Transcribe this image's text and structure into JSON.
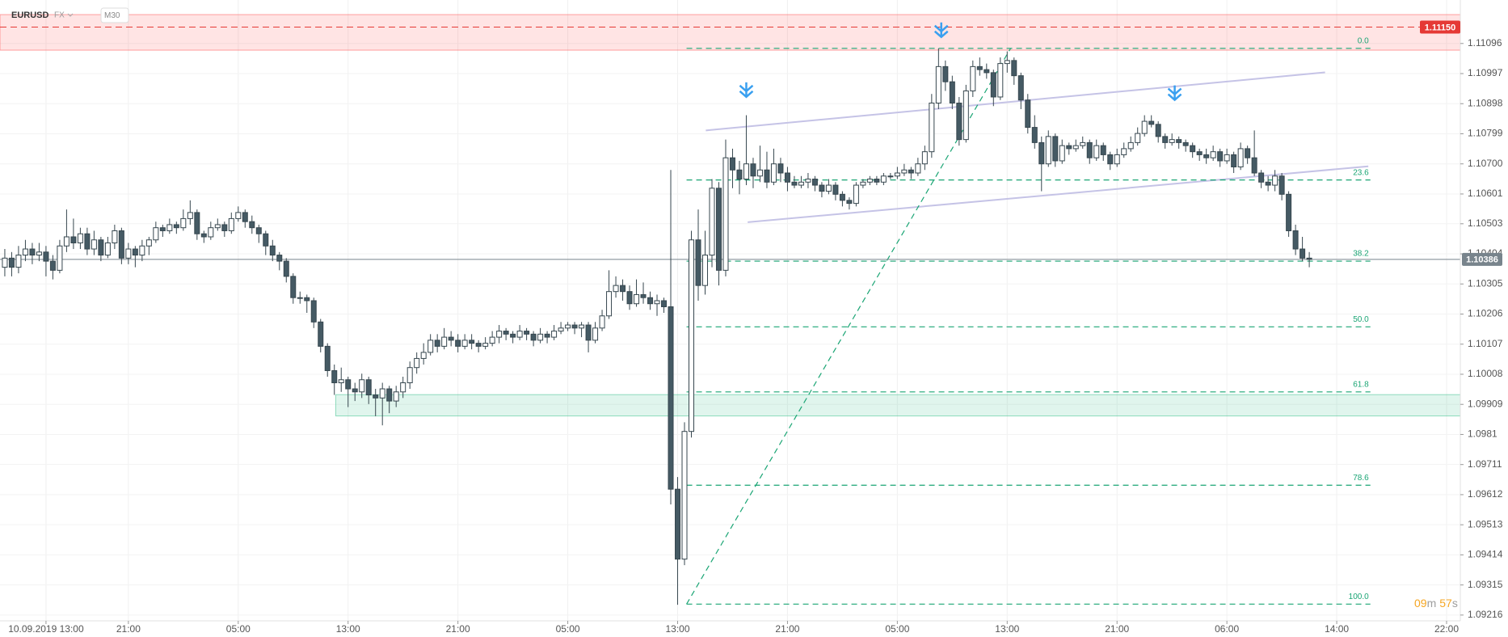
{
  "chart_data": {
    "type": "candlestick",
    "symbol": "EURUSD",
    "market": "FX",
    "interval": "M30",
    "countdown": [
      "09",
      "m",
      "57",
      "s"
    ],
    "up_color": "#ffffff",
    "down_color": "#455a64",
    "grid": true,
    "xlim": [
      -0.7,
      212
    ],
    "ylim": [
      1.09197,
      1.11239
    ],
    "xticks": [
      {
        "value": 6,
        "label": "10.09.2019 13:00"
      },
      {
        "value": 18,
        "label": "21:00"
      },
      {
        "value": 34,
        "label": "05:00"
      },
      {
        "value": 50,
        "label": "13:00"
      },
      {
        "value": 66,
        "label": "21:00"
      },
      {
        "value": 82,
        "label": "05:00"
      },
      {
        "value": 98,
        "label": "13:00"
      },
      {
        "value": 114,
        "label": "21:00"
      },
      {
        "value": 130,
        "label": "05:00"
      },
      {
        "value": 146,
        "label": "13:00"
      },
      {
        "value": 162,
        "label": "21:00"
      },
      {
        "value": 178,
        "label": "06:00"
      },
      {
        "value": 194,
        "label": "14:00"
      },
      {
        "value": 210,
        "label": "22:00"
      }
    ],
    "yticks": [
      1.11096,
      1.10997,
      1.10898,
      1.10799,
      {
        "value": 1.107,
        "label": "1.10700"
      },
      1.10601,
      1.10503,
      1.10404,
      1.10305,
      1.10206,
      1.10107,
      1.10008,
      1.09909,
      1.0981,
      1.09711,
      1.09612,
      1.09513,
      1.09414,
      1.09315,
      1.09216
    ],
    "zones": [
      {
        "color": "#ff4d4d",
        "x_from": -0.7,
        "price_from": 1.11074,
        "price_to": 1.11191
      },
      {
        "color": "#2ebd85",
        "x_from": 48.2,
        "price_from": 1.09871,
        "price_to": 1.09941
      }
    ],
    "price_lines": [
      {
        "price": {
          "value": 1.1115,
          "label": "1.11150"
        },
        "color": "#e53935"
      },
      {
        "price": 1.10386,
        "color": "#78848c"
      }
    ],
    "fib": [
      {
        "label": "0.0",
        "price": 1.1108
      },
      {
        "label": "23.6",
        "price": 1.10647
      },
      {
        "label": "38.2",
        "price": 1.1038
      },
      {
        "label": "50.0",
        "price": 1.10164
      },
      {
        "label": "61.8",
        "price": 1.0995
      },
      {
        "label": "78.6",
        "price": 1.09643
      },
      {
        "label": "100.0",
        "price": 1.09252
      }
    ],
    "fib_x": [
      99.3,
      198.9
    ],
    "fib_diagonal": {
      "x": [
        99.3,
        146.5
      ],
      "price": [
        1.09252,
        1.1108
      ]
    },
    "trendlines": [
      {
        "x": [
          102.1,
          192.3
        ],
        "price": [
          1.1081,
          1.11001
        ]
      },
      {
        "x": [
          108.2,
          198.6
        ],
        "price": [
          1.10508,
          1.10692
        ]
      }
    ],
    "signals": [
      {
        "x": 108,
        "price": 1.10931
      },
      {
        "x": 136.4,
        "price": 1.11128
      },
      {
        "x": 170.4,
        "price": 1.10921
      }
    ],
    "ohlc": [
      [
        1.1036,
        1.1042,
        1.1033,
        1.1039
      ],
      [
        1.1039,
        1.1041,
        1.1033,
        1.1036
      ],
      [
        1.1036,
        1.1043,
        1.1034,
        1.104
      ],
      [
        1.104,
        1.1045,
        1.1038,
        1.1042
      ],
      [
        1.1042,
        1.1044,
        1.1037,
        1.104
      ],
      [
        1.104,
        1.1044,
        1.1038,
        1.1041
      ],
      [
        1.1041,
        1.1043,
        1.1033,
        1.1038
      ],
      [
        1.1038,
        1.104,
        1.1032,
        1.1035
      ],
      [
        1.1035,
        1.1045,
        1.1034,
        1.1043
      ],
      [
        1.1043,
        1.1055,
        1.1041,
        1.1046
      ],
      [
        1.1046,
        1.1052,
        1.1042,
        1.1044
      ],
      [
        1.1044,
        1.1049,
        1.1042,
        1.1047
      ],
      [
        1.1047,
        1.1049,
        1.104,
        1.1042
      ],
      [
        1.1042,
        1.1048,
        1.104,
        1.1045
      ],
      [
        1.1045,
        1.1046,
        1.1038,
        1.104
      ],
      [
        1.104,
        1.1046,
        1.1039,
        1.1044
      ],
      [
        1.1044,
        1.105,
        1.1042,
        1.1048
      ],
      [
        1.1048,
        1.1049,
        1.1037,
        1.1039
      ],
      [
        1.1039,
        1.1044,
        1.1037,
        1.1042
      ],
      [
        1.1042,
        1.1043,
        1.1036,
        1.104
      ],
      [
        1.104,
        1.1045,
        1.1038,
        1.1043
      ],
      [
        1.1043,
        1.1046,
        1.104,
        1.1045
      ],
      [
        1.1045,
        1.1051,
        1.1044,
        1.1049
      ],
      [
        1.1049,
        1.105,
        1.1046,
        1.1048
      ],
      [
        1.1048,
        1.1052,
        1.1047,
        1.105
      ],
      [
        1.105,
        1.1051,
        1.1047,
        1.1049
      ],
      [
        1.1049,
        1.1055,
        1.1048,
        1.1052
      ],
      [
        1.1052,
        1.1058,
        1.105,
        1.1054
      ],
      [
        1.1054,
        1.1055,
        1.1045,
        1.1047
      ],
      [
        1.1047,
        1.1048,
        1.1044,
        1.1046
      ],
      [
        1.1046,
        1.1051,
        1.1045,
        1.1049
      ],
      [
        1.1049,
        1.1052,
        1.1048,
        1.105
      ],
      [
        1.105,
        1.1051,
        1.1046,
        1.1048
      ],
      [
        1.1048,
        1.1054,
        1.1047,
        1.1052
      ],
      [
        1.1052,
        1.1056,
        1.1051,
        1.1054
      ],
      [
        1.1054,
        1.1055,
        1.1049,
        1.1051
      ],
      [
        1.1051,
        1.1053,
        1.1047,
        1.1049
      ],
      [
        1.1049,
        1.105,
        1.1044,
        1.1047
      ],
      [
        1.1047,
        1.1048,
        1.104,
        1.1043
      ],
      [
        1.1043,
        1.1045,
        1.1038,
        1.104
      ],
      [
        1.104,
        1.1041,
        1.1035,
        1.1038
      ],
      [
        1.1038,
        1.1039,
        1.1031,
        1.1033
      ],
      [
        1.1033,
        1.1034,
        1.1024,
        1.1026
      ],
      [
        1.1026,
        1.1028,
        1.1024,
        1.1026
      ],
      [
        1.1026,
        1.1027,
        1.1021,
        1.1025
      ],
      [
        1.1025,
        1.1026,
        1.1016,
        1.1018
      ],
      [
        1.1018,
        1.1019,
        1.1008,
        1.101
      ],
      [
        1.101,
        1.1011,
        1.1,
        1.1002
      ],
      [
        1.1002,
        1.1004,
        1.0994,
        1.0998
      ],
      [
        1.0998,
        1.1003,
        1.0995,
        1.0999
      ],
      [
        1.0999,
        1.1,
        1.099,
        1.0996
      ],
      [
        1.0996,
        1.0998,
        1.0992,
        1.0995
      ],
      [
        1.0995,
        1.1001,
        1.0993,
        1.0999
      ],
      [
        1.0999,
        1.1,
        1.0991,
        1.0994
      ],
      [
        1.0994,
        1.0996,
        1.0987,
        1.0993
      ],
      [
        1.0993,
        1.0998,
        1.0984,
        1.0996
      ],
      [
        1.0996,
        1.0997,
        1.0988,
        1.0992
      ],
      [
        1.0992,
        1.0997,
        1.099,
        1.0995
      ],
      [
        1.0995,
        1.1,
        1.0993,
        1.0998
      ],
      [
        1.0998,
        1.1005,
        1.0996,
        1.1003
      ],
      [
        1.1003,
        1.1008,
        1.1001,
        1.1006
      ],
      [
        1.1006,
        1.1011,
        1.1004,
        1.1008
      ],
      [
        1.1008,
        1.1014,
        1.1007,
        1.1012
      ],
      [
        1.1012,
        1.1014,
        1.1008,
        1.101
      ],
      [
        1.101,
        1.1016,
        1.1009,
        1.1013
      ],
      [
        1.1013,
        1.1015,
        1.101,
        1.1012
      ],
      [
        1.1012,
        1.1014,
        1.1008,
        1.101
      ],
      [
        1.101,
        1.1014,
        1.1009,
        1.1012
      ],
      [
        1.1012,
        1.1014,
        1.1009,
        1.1011
      ],
      [
        1.1011,
        1.1012,
        1.1008,
        1.101
      ],
      [
        1.101,
        1.1013,
        1.1009,
        1.1011
      ],
      [
        1.1011,
        1.1015,
        1.101,
        1.1013
      ],
      [
        1.1013,
        1.1017,
        1.1011,
        1.1015
      ],
      [
        1.1015,
        1.1016,
        1.1012,
        1.1014
      ],
      [
        1.1014,
        1.1015,
        1.1011,
        1.1013
      ],
      [
        1.1013,
        1.1017,
        1.1012,
        1.1015
      ],
      [
        1.1015,
        1.1016,
        1.1012,
        1.1014
      ],
      [
        1.1014,
        1.1015,
        1.101,
        1.1012
      ],
      [
        1.1012,
        1.1016,
        1.1011,
        1.1014
      ],
      [
        1.1014,
        1.1015,
        1.1011,
        1.1013
      ],
      [
        1.1013,
        1.1017,
        1.1012,
        1.1015
      ],
      [
        1.1015,
        1.1018,
        1.1014,
        1.1016
      ],
      [
        1.1016,
        1.1018,
        1.1015,
        1.1017
      ],
      [
        1.1017,
        1.1018,
        1.1014,
        1.1016
      ],
      [
        1.1016,
        1.1018,
        1.1013,
        1.1017
      ],
      [
        1.1017,
        1.1018,
        1.1008,
        1.1012
      ],
      [
        1.1012,
        1.1018,
        1.1011,
        1.1016
      ],
      [
        1.1016,
        1.1022,
        1.1015,
        1.102
      ],
      [
        1.102,
        1.1035,
        1.1019,
        1.1028
      ],
      [
        1.1028,
        1.1033,
        1.1026,
        1.103
      ],
      [
        1.103,
        1.1032,
        1.1025,
        1.1028
      ],
      [
        1.1028,
        1.103,
        1.1022,
        1.1024
      ],
      [
        1.1024,
        1.1032,
        1.1023,
        1.1027
      ],
      [
        1.1027,
        1.1031,
        1.1024,
        1.1026
      ],
      [
        1.1026,
        1.1028,
        1.1022,
        1.1024
      ],
      [
        1.1024,
        1.1027,
        1.102,
        1.1025
      ],
      [
        1.1025,
        1.1026,
        1.1021,
        1.1023
      ],
      [
        1.1023,
        1.1068,
        1.0958,
        1.0963
      ],
      [
        1.0963,
        1.0967,
        1.0925,
        1.094
      ],
      [
        1.094,
        1.0985,
        1.0938,
        1.0982
      ],
      [
        1.0982,
        1.1048,
        1.098,
        1.1045
      ],
      [
        1.1045,
        1.1055,
        1.1025,
        1.103
      ],
      [
        1.103,
        1.1048,
        1.1027,
        1.104
      ],
      [
        1.104,
        1.1065,
        1.1036,
        1.1062
      ],
      [
        1.1062,
        1.1064,
        1.103,
        1.1035
      ],
      [
        1.1035,
        1.1078,
        1.1033,
        1.1072
      ],
      [
        1.1072,
        1.1075,
        1.1062,
        1.1068
      ],
      [
        1.1068,
        1.1071,
        1.106,
        1.1065
      ],
      [
        1.1065,
        1.1086,
        1.1063,
        1.107
      ],
      [
        1.107,
        1.1072,
        1.1062,
        1.1066
      ],
      [
        1.1066,
        1.1076,
        1.1064,
        1.1068
      ],
      [
        1.1068,
        1.1074,
        1.1062,
        1.1064
      ],
      [
        1.1064,
        1.1075,
        1.1063,
        1.107
      ],
      [
        1.107,
        1.1072,
        1.1064,
        1.1067
      ],
      [
        1.1067,
        1.1069,
        1.1061,
        1.1064
      ],
      [
        1.1064,
        1.1066,
        1.1062,
        1.1063
      ],
      [
        1.1063,
        1.1066,
        1.1062,
        1.1064
      ],
      [
        1.1064,
        1.1067,
        1.1062,
        1.1065
      ],
      [
        1.1065,
        1.1066,
        1.1061,
        1.1063
      ],
      [
        1.1063,
        1.1064,
        1.1059,
        1.1061
      ],
      [
        1.1061,
        1.1065,
        1.106,
        1.1063
      ],
      [
        1.1063,
        1.1064,
        1.1058,
        1.106
      ],
      [
        1.106,
        1.1061,
        1.1056,
        1.1058
      ],
      [
        1.1058,
        1.1059,
        1.1055,
        1.1057
      ],
      [
        1.1057,
        1.1064,
        1.1056,
        1.1063
      ],
      [
        1.1063,
        1.1065,
        1.1062,
        1.1064
      ],
      [
        1.1064,
        1.1066,
        1.1063,
        1.1065
      ],
      [
        1.1065,
        1.1066,
        1.1063,
        1.1064
      ],
      [
        1.1064,
        1.1067,
        1.1063,
        1.1066
      ],
      [
        1.1066,
        1.1067,
        1.1065,
        1.1066
      ],
      [
        1.1066,
        1.1069,
        1.1065,
        1.1067
      ],
      [
        1.1067,
        1.107,
        1.1066,
        1.1068
      ],
      [
        1.1068,
        1.1069,
        1.1065,
        1.1067
      ],
      [
        1.1067,
        1.1072,
        1.1066,
        1.107
      ],
      [
        1.107,
        1.1076,
        1.1068,
        1.1074
      ],
      [
        1.1074,
        1.1093,
        1.1072,
        1.109
      ],
      [
        1.109,
        1.1108,
        1.1088,
        1.1102
      ],
      [
        1.1102,
        1.1104,
        1.1094,
        1.1097
      ],
      [
        1.1097,
        1.1099,
        1.1088,
        1.109
      ],
      [
        1.109,
        1.1092,
        1.1076,
        1.1078
      ],
      [
        1.1078,
        1.1096,
        1.1077,
        1.1094
      ],
      [
        1.1094,
        1.1104,
        1.1092,
        1.1102
      ],
      [
        1.1102,
        1.1105,
        1.1099,
        1.1101
      ],
      [
        1.1101,
        1.1103,
        1.1098,
        1.11
      ],
      [
        1.11,
        1.1101,
        1.1089,
        1.1092
      ],
      [
        1.1092,
        1.1105,
        1.1091,
        1.1103
      ],
      [
        1.1103,
        1.1107,
        1.11,
        1.1104
      ],
      [
        1.1104,
        1.1105,
        1.1096,
        1.1099
      ],
      [
        1.1099,
        1.11,
        1.1088,
        1.1091
      ],
      [
        1.1091,
        1.1093,
        1.108,
        1.1082
      ],
      [
        1.1082,
        1.1086,
        1.1075,
        1.1077
      ],
      [
        1.1077,
        1.1079,
        1.1061,
        1.107
      ],
      [
        1.107,
        1.1081,
        1.1069,
        1.1079
      ],
      [
        1.1079,
        1.108,
        1.1069,
        1.1071
      ],
      [
        1.1071,
        1.1078,
        1.107,
        1.1076
      ],
      [
        1.1076,
        1.1077,
        1.1073,
        1.1075
      ],
      [
        1.1075,
        1.1078,
        1.1074,
        1.1076
      ],
      [
        1.1076,
        1.1079,
        1.1075,
        1.1077
      ],
      [
        1.1077,
        1.1078,
        1.107,
        1.1072
      ],
      [
        1.1072,
        1.1078,
        1.1071,
        1.1076
      ],
      [
        1.1076,
        1.1077,
        1.1071,
        1.1073
      ],
      [
        1.1073,
        1.1074,
        1.1068,
        1.107
      ],
      [
        1.107,
        1.1075,
        1.1069,
        1.1073
      ],
      [
        1.1073,
        1.1077,
        1.1072,
        1.1075
      ],
      [
        1.1075,
        1.1079,
        1.1074,
        1.1077
      ],
      [
        1.1077,
        1.1082,
        1.1076,
        1.108
      ],
      [
        1.108,
        1.1086,
        1.1079,
        1.1084
      ],
      [
        1.1084,
        1.1086,
        1.1082,
        1.1083
      ],
      [
        1.1083,
        1.1084,
        1.1077,
        1.1079
      ],
      [
        1.1079,
        1.108,
        1.1075,
        1.1077
      ],
      [
        1.1077,
        1.108,
        1.1076,
        1.1078
      ],
      [
        1.1078,
        1.1079,
        1.1075,
        1.1077
      ],
      [
        1.1077,
        1.1078,
        1.1074,
        1.1076
      ],
      [
        1.1076,
        1.1077,
        1.1072,
        1.1074
      ],
      [
        1.1074,
        1.1075,
        1.1071,
        1.1073
      ],
      [
        1.1073,
        1.1075,
        1.107,
        1.1072
      ],
      [
        1.1072,
        1.1076,
        1.1071,
        1.1074
      ],
      [
        1.1074,
        1.1075,
        1.1069,
        1.1071
      ],
      [
        1.1071,
        1.1075,
        1.107,
        1.1073
      ],
      [
        1.1073,
        1.1074,
        1.1067,
        1.1069
      ],
      [
        1.1069,
        1.1077,
        1.1068,
        1.1075
      ],
      [
        1.1075,
        1.1076,
        1.107,
        1.1072
      ],
      [
        1.1072,
        1.1081,
        1.1066,
        1.1067
      ],
      [
        1.1067,
        1.1068,
        1.1062,
        1.1064
      ],
      [
        1.1064,
        1.1066,
        1.1061,
        1.1063
      ],
      [
        1.1063,
        1.1068,
        1.1061,
        1.1066
      ],
      [
        1.1066,
        1.1067,
        1.1058,
        1.106
      ],
      [
        1.106,
        1.1061,
        1.1046,
        1.1048
      ],
      [
        1.1048,
        1.105,
        1.104,
        1.1042
      ],
      [
        1.1042,
        1.1046,
        1.1038,
        1.1039
      ],
      [
        1.1039,
        1.1041,
        1.1036,
        1.10386
      ]
    ]
  }
}
